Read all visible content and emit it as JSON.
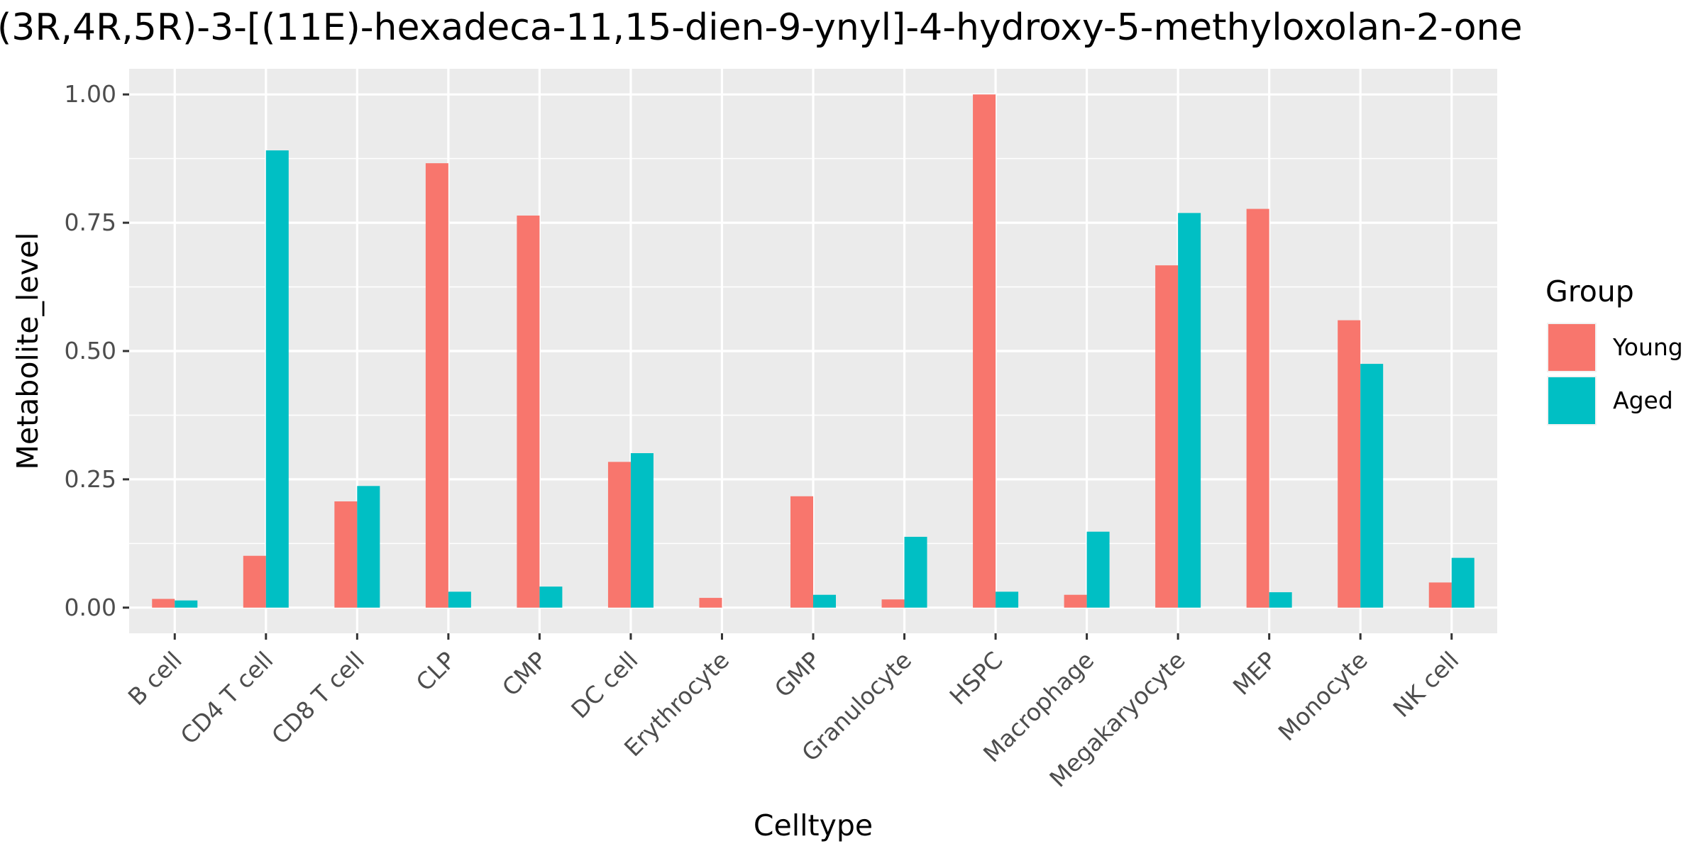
{
  "chart_data": {
    "type": "bar",
    "title": "(3R,4R,5R)-3-[(11E)-hexadeca-11,15-dien-9-ynyl]-4-hydroxy-5-methyloxolan-2-one",
    "xlabel": "Celltype",
    "ylabel": "Metabolite_level",
    "ylim": [
      -0.05,
      1.05
    ],
    "yticks": [
      0.0,
      0.25,
      0.5,
      0.75,
      1.0
    ],
    "ytick_labels": [
      "0.00",
      "0.25",
      "0.50",
      "0.75",
      "1.00"
    ],
    "grid": true,
    "legend_position": "right",
    "legend_title": "Group",
    "categories": [
      "B cell",
      "CD4 T cell",
      "CD8 T cell",
      "CLP",
      "CMP",
      "DC cell",
      "Erythrocyte",
      "GMP",
      "Granulocyte",
      "HSPC",
      "Macrophage",
      "Megakaryocyte",
      "MEP",
      "Monocyte",
      "NK cell"
    ],
    "series": [
      {
        "name": "Young",
        "color": "#F8766D",
        "values": [
          0.017,
          0.101,
          0.207,
          0.866,
          0.764,
          0.284,
          0.019,
          0.217,
          0.016,
          1.0,
          0.025,
          0.667,
          0.777,
          0.56,
          0.049
        ]
      },
      {
        "name": "Aged",
        "color": "#00BFC4",
        "values": [
          0.014,
          0.891,
          0.237,
          0.031,
          0.041,
          0.301,
          0.0,
          0.025,
          0.138,
          0.031,
          0.148,
          0.769,
          0.03,
          0.475,
          0.097
        ]
      }
    ]
  }
}
